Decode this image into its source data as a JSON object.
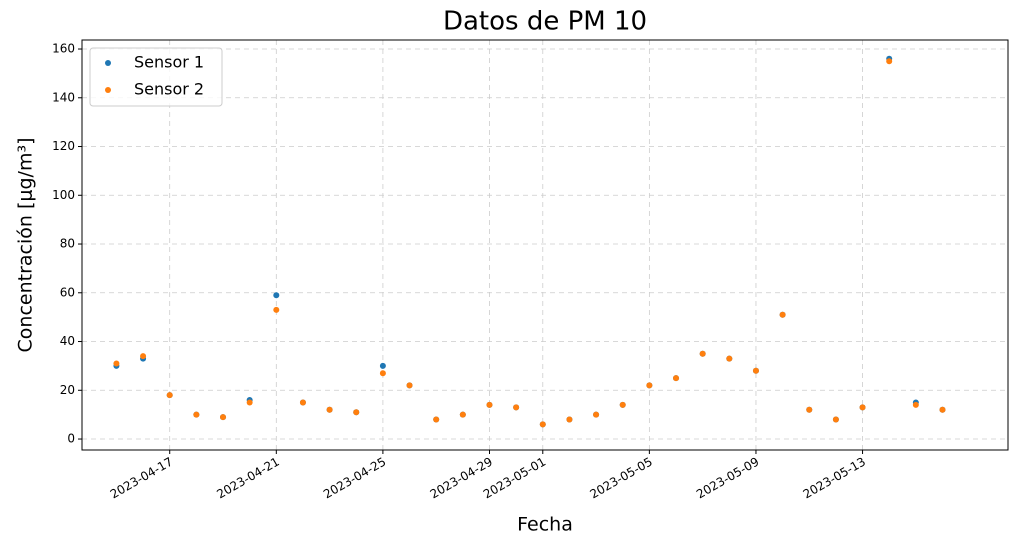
{
  "chart_data": {
    "type": "scatter",
    "title": "Datos de PM 10",
    "xlabel": "Fecha",
    "ylabel": "Concentración [μg/m³]",
    "x": [
      "2023-04-15",
      "2023-04-16",
      "2023-04-17",
      "2023-04-18",
      "2023-04-19",
      "2023-04-20",
      "2023-04-21",
      "2023-04-22",
      "2023-04-23",
      "2023-04-24",
      "2023-04-25",
      "2023-04-26",
      "2023-04-27",
      "2023-04-28",
      "2023-04-29",
      "2023-04-30",
      "2023-05-01",
      "2023-05-02",
      "2023-05-03",
      "2023-05-04",
      "2023-05-05",
      "2023-05-06",
      "2023-05-07",
      "2023-05-08",
      "2023-05-09",
      "2023-05-10",
      "2023-05-11",
      "2023-05-12",
      "2023-05-13",
      "2023-05-14",
      "2023-05-15",
      "2023-05-16"
    ],
    "series": [
      {
        "name": "Sensor 1",
        "color": "#1f77b4",
        "values": [
          30,
          33,
          18,
          10,
          9,
          16,
          59,
          15,
          12,
          11,
          30,
          22,
          8,
          10,
          14,
          13,
          6,
          8,
          10,
          14,
          22,
          25,
          35,
          33,
          28,
          51,
          12,
          8,
          13,
          156,
          15,
          12
        ]
      },
      {
        "name": "Sensor 2",
        "color": "#ff7f0e",
        "values": [
          31,
          34,
          18,
          10,
          9,
          15,
          53,
          15,
          12,
          11,
          27,
          22,
          8,
          10,
          14,
          13,
          6,
          8,
          10,
          14,
          22,
          25,
          35,
          33,
          28,
          51,
          12,
          8,
          13,
          155,
          14,
          12
        ]
      }
    ],
    "xlim": [
      "2023-04-13T17:00",
      "2023-05-18T11:00"
    ],
    "xticks": [
      "2023-04-17",
      "2023-04-21",
      "2023-04-25",
      "2023-04-29",
      "2023-05-01",
      "2023-05-05",
      "2023-05-09",
      "2023-05-13"
    ],
    "ylim": [
      -4.5,
      163.7
    ],
    "yticks": [
      0,
      20,
      40,
      60,
      80,
      100,
      120,
      140,
      160
    ],
    "grid": true,
    "legend": "upper left"
  }
}
